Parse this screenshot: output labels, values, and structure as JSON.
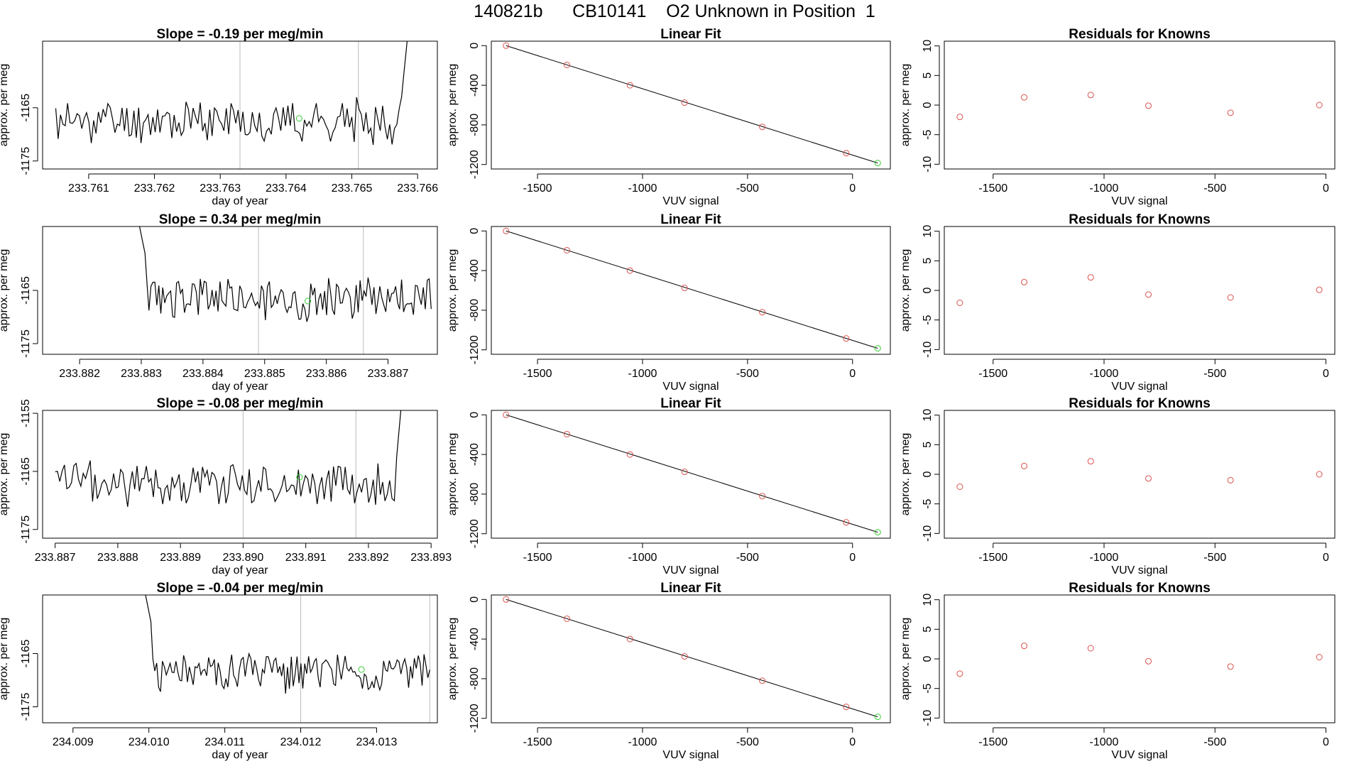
{
  "page_title": "140821b      CB10141    O2 Unknown in Position  1",
  "colors": {
    "trace": "#000000",
    "known_points": "#d9534f",
    "unknown_point": "#33cc33",
    "box": "#000000",
    "vline": "#bbbbbb"
  },
  "chart_data": [
    {
      "type": "line",
      "title": "Slope =  -0.19  per meg/min",
      "xlabel": "day of year",
      "ylabel": "approx. per meg",
      "xlim": [
        233.7603,
        233.7663
      ],
      "ylim": [
        -1176.5,
        -1152.5
      ],
      "xticks": [
        "233.761",
        "233.762",
        "233.763",
        "233.764",
        "233.765",
        "233.766"
      ],
      "xtick_values": [
        233.761,
        233.762,
        233.763,
        233.764,
        233.765,
        233.766
      ],
      "yticks": [
        "-1165",
        "-1175"
      ],
      "ytick_values": [
        -1165,
        -1175
      ],
      "vlines": [
        233.7633,
        233.7651
      ],
      "unknown_marker": [
        233.7642,
        -1167
      ],
      "trace": {
        "x_start": 233.7605,
        "x_end": 233.7659,
        "mean": -1167.5,
        "amp": 3.5,
        "seed": 11,
        "start_spike": false,
        "end_spike": true
      }
    },
    {
      "type": "scatter",
      "title": "Linear Fit",
      "xlabel": "VUV signal",
      "ylabel": "approx. per meg",
      "xlim": [
        -1720,
        180
      ],
      "ylim": [
        -1245,
        45
      ],
      "xticks": [
        "-1500",
        "-1000",
        "-500",
        "0"
      ],
      "xtick_values": [
        -1500,
        -1000,
        -500,
        0
      ],
      "yticks": [
        "0",
        "-400",
        "-800",
        "-1200"
      ],
      "ytick_values": [
        0,
        -400,
        -800,
        -1200
      ],
      "fit_line": [
        [
          -1650,
          0
        ],
        [
          120,
          -1185
        ]
      ],
      "points": [
        [
          -1650,
          0
        ],
        [
          -1360,
          -195
        ],
        [
          -1060,
          -400
        ],
        [
          -800,
          -575
        ],
        [
          -430,
          -820
        ],
        [
          -30,
          -1085
        ]
      ],
      "unknown": [
        [
          120,
          -1185
        ]
      ]
    },
    {
      "type": "scatter",
      "title": "Residuals for Knowns",
      "xlabel": "VUV signal",
      "ylabel": "approx. per meg",
      "xlim": [
        -1720,
        40
      ],
      "ylim": [
        -10.8,
        10.8
      ],
      "xticks": [
        "-1500",
        "-1000",
        "-500",
        "0"
      ],
      "xtick_values": [
        -1500,
        -1000,
        -500,
        0
      ],
      "yticks": [
        "10",
        "5",
        "0",
        "-5",
        "-10"
      ],
      "ytick_values": [
        10,
        5,
        0,
        -5,
        -10
      ],
      "points": [
        [
          -1650,
          -2.0
        ],
        [
          -1360,
          1.3
        ],
        [
          -1060,
          1.7
        ],
        [
          -800,
          -0.1
        ],
        [
          -430,
          -1.3
        ],
        [
          -30,
          0.0
        ]
      ]
    },
    {
      "type": "line",
      "title": "Slope =  0.34  per meg/min",
      "xlabel": "day of year",
      "ylabel": "approx. per meg",
      "xlim": [
        233.8814,
        233.8878
      ],
      "ylim": [
        -1177,
        -1153
      ],
      "xticks": [
        "233.882",
        "233.883",
        "233.884",
        "233.885",
        "233.886",
        "233.887"
      ],
      "xtick_values": [
        233.882,
        233.883,
        233.884,
        233.885,
        233.886,
        233.887
      ],
      "yticks": [
        "-1165",
        "-1175"
      ],
      "ytick_values": [
        -1165,
        -1175
      ],
      "vlines": [
        233.8849,
        233.8866
      ],
      "unknown_marker": [
        233.8857,
        -1167
      ],
      "trace": {
        "x_start": 233.8829,
        "x_end": 233.8877,
        "mean": -1166.5,
        "amp": 3.6,
        "seed": 23,
        "start_spike": true,
        "end_spike": false
      }
    },
    {
      "type": "scatter",
      "title": "Linear Fit",
      "xlabel": "VUV signal",
      "ylabel": "approx. per meg",
      "xlim": [
        -1720,
        180
      ],
      "ylim": [
        -1245,
        45
      ],
      "xticks": [
        "-1500",
        "-1000",
        "-500",
        "0"
      ],
      "xtick_values": [
        -1500,
        -1000,
        -500,
        0
      ],
      "yticks": [
        "0",
        "-400",
        "-800",
        "-1200"
      ],
      "ytick_values": [
        0,
        -400,
        -800,
        -1200
      ],
      "fit_line": [
        [
          -1650,
          0
        ],
        [
          120,
          -1185
        ]
      ],
      "points": [
        [
          -1650,
          0
        ],
        [
          -1360,
          -195
        ],
        [
          -1060,
          -400
        ],
        [
          -800,
          -575
        ],
        [
          -430,
          -820
        ],
        [
          -30,
          -1085
        ]
      ],
      "unknown": [
        [
          120,
          -1185
        ]
      ]
    },
    {
      "type": "scatter",
      "title": "Residuals for Knowns",
      "xlabel": "VUV signal",
      "ylabel": "approx. per meg",
      "xlim": [
        -1720,
        40
      ],
      "ylim": [
        -10.8,
        10.8
      ],
      "xticks": [
        "-1500",
        "-1000",
        "-500",
        "0"
      ],
      "xtick_values": [
        -1500,
        -1000,
        -500,
        0
      ],
      "yticks": [
        "10",
        "5",
        "0",
        "-5",
        "-10"
      ],
      "ytick_values": [
        10,
        5,
        0,
        -5,
        -10
      ],
      "points": [
        [
          -1650,
          -2.1
        ],
        [
          -1360,
          1.4
        ],
        [
          -1060,
          2.2
        ],
        [
          -800,
          -0.7
        ],
        [
          -430,
          -1.2
        ],
        [
          -30,
          0.1
        ]
      ]
    },
    {
      "type": "line",
      "title": "Slope =  -0.08  per meg/min",
      "xlabel": "day of year",
      "ylabel": "approx. per meg",
      "xlim": [
        233.8868,
        233.8931
      ],
      "ylim": [
        -1176.5,
        -1154.5
      ],
      "xticks": [
        "233.887",
        "233.888",
        "233.889",
        "233.890",
        "233.891",
        "233.892",
        "233.893"
      ],
      "xtick_values": [
        233.887,
        233.888,
        233.889,
        233.89,
        233.891,
        233.892,
        233.893
      ],
      "yticks": [
        "-1155",
        "-1165",
        "-1175"
      ],
      "ytick_values": [
        -1155,
        -1165,
        -1175
      ],
      "vlines": [
        233.89,
        233.8918
      ],
      "unknown_marker": [
        233.8909,
        -1166
      ],
      "trace": {
        "x_start": 233.887,
        "x_end": 233.8926,
        "mean": -1167,
        "amp": 3.4,
        "seed": 37,
        "start_spike": false,
        "end_spike": true
      }
    },
    {
      "type": "scatter",
      "title": "Linear Fit",
      "xlabel": "VUV signal",
      "ylabel": "approx. per meg",
      "xlim": [
        -1720,
        180
      ],
      "ylim": [
        -1245,
        45
      ],
      "xticks": [
        "-1500",
        "-1000",
        "-500",
        "0"
      ],
      "xtick_values": [
        -1500,
        -1000,
        -500,
        0
      ],
      "yticks": [
        "0",
        "-400",
        "-800",
        "-1200"
      ],
      "ytick_values": [
        0,
        -400,
        -800,
        -1200
      ],
      "fit_line": [
        [
          -1650,
          0
        ],
        [
          120,
          -1185
        ]
      ],
      "points": [
        [
          -1650,
          0
        ],
        [
          -1360,
          -195
        ],
        [
          -1060,
          -400
        ],
        [
          -800,
          -575
        ],
        [
          -430,
          -820
        ],
        [
          -30,
          -1085
        ]
      ],
      "unknown": [
        [
          120,
          -1185
        ]
      ]
    },
    {
      "type": "scatter",
      "title": "Residuals for Knowns",
      "xlabel": "VUV signal",
      "ylabel": "approx. per meg",
      "xlim": [
        -1720,
        40
      ],
      "ylim": [
        -10.8,
        10.8
      ],
      "xticks": [
        "-1500",
        "-1000",
        "-500",
        "0"
      ],
      "xtick_values": [
        -1500,
        -1000,
        -500,
        0
      ],
      "yticks": [
        "10",
        "5",
        "0",
        "-5",
        "-10"
      ],
      "ytick_values": [
        10,
        5,
        0,
        -5,
        -10
      ],
      "points": [
        [
          -1650,
          -2.1
        ],
        [
          -1360,
          1.4
        ],
        [
          -1060,
          2.2
        ],
        [
          -800,
          -0.7
        ],
        [
          -430,
          -1.0
        ],
        [
          -30,
          0.0
        ]
      ]
    },
    {
      "type": "line",
      "title": "Slope =  -0.04  per meg/min",
      "xlabel": "day of year",
      "ylabel": "approx. per meg",
      "xlim": [
        234.0086,
        234.0138
      ],
      "ylim": [
        -1178,
        -1154
      ],
      "xticks": [
        "234.009",
        "234.010",
        "234.011",
        "234.012",
        "234.013"
      ],
      "xtick_values": [
        234.009,
        234.01,
        234.011,
        234.012,
        234.013
      ],
      "yticks": [
        "-1165",
        "-1175"
      ],
      "ytick_values": [
        -1165,
        -1175
      ],
      "vlines": [
        234.012,
        234.0137
      ],
      "unknown_marker": [
        234.0128,
        -1168
      ],
      "trace": {
        "x_start": 234.0099,
        "x_end": 234.0137,
        "mean": -1168.5,
        "amp": 3.3,
        "seed": 51,
        "start_spike": true,
        "end_spike": false
      }
    },
    {
      "type": "scatter",
      "title": "Linear Fit",
      "xlabel": "VUV signal",
      "ylabel": "approx. per meg",
      "xlim": [
        -1720,
        180
      ],
      "ylim": [
        -1245,
        45
      ],
      "xticks": [
        "-1500",
        "-1000",
        "-500",
        "0"
      ],
      "xtick_values": [
        -1500,
        -1000,
        -500,
        0
      ],
      "yticks": [
        "0",
        "-400",
        "-800",
        "-1200"
      ],
      "ytick_values": [
        0,
        -400,
        -800,
        -1200
      ],
      "fit_line": [
        [
          -1650,
          0
        ],
        [
          120,
          -1185
        ]
      ],
      "points": [
        [
          -1650,
          0
        ],
        [
          -1360,
          -195
        ],
        [
          -1060,
          -400
        ],
        [
          -800,
          -575
        ],
        [
          -430,
          -820
        ],
        [
          -30,
          -1085
        ]
      ],
      "unknown": [
        [
          120,
          -1185
        ]
      ]
    },
    {
      "type": "scatter",
      "title": "Residuals for Knowns",
      "xlabel": "VUV signal",
      "ylabel": "approx. per meg",
      "xlim": [
        -1720,
        40
      ],
      "ylim": [
        -10.8,
        10.8
      ],
      "xticks": [
        "-1500",
        "-1000",
        "-500",
        "0"
      ],
      "xtick_values": [
        -1500,
        -1000,
        -500,
        0
      ],
      "yticks": [
        "10",
        "5",
        "0",
        "-5",
        "-10"
      ],
      "ytick_values": [
        10,
        5,
        0,
        -5,
        -10
      ],
      "points": [
        [
          -1650,
          -2.5
        ],
        [
          -1360,
          2.2
        ],
        [
          -1060,
          1.8
        ],
        [
          -800,
          -0.4
        ],
        [
          -430,
          -1.3
        ],
        [
          -30,
          0.3
        ]
      ]
    }
  ]
}
